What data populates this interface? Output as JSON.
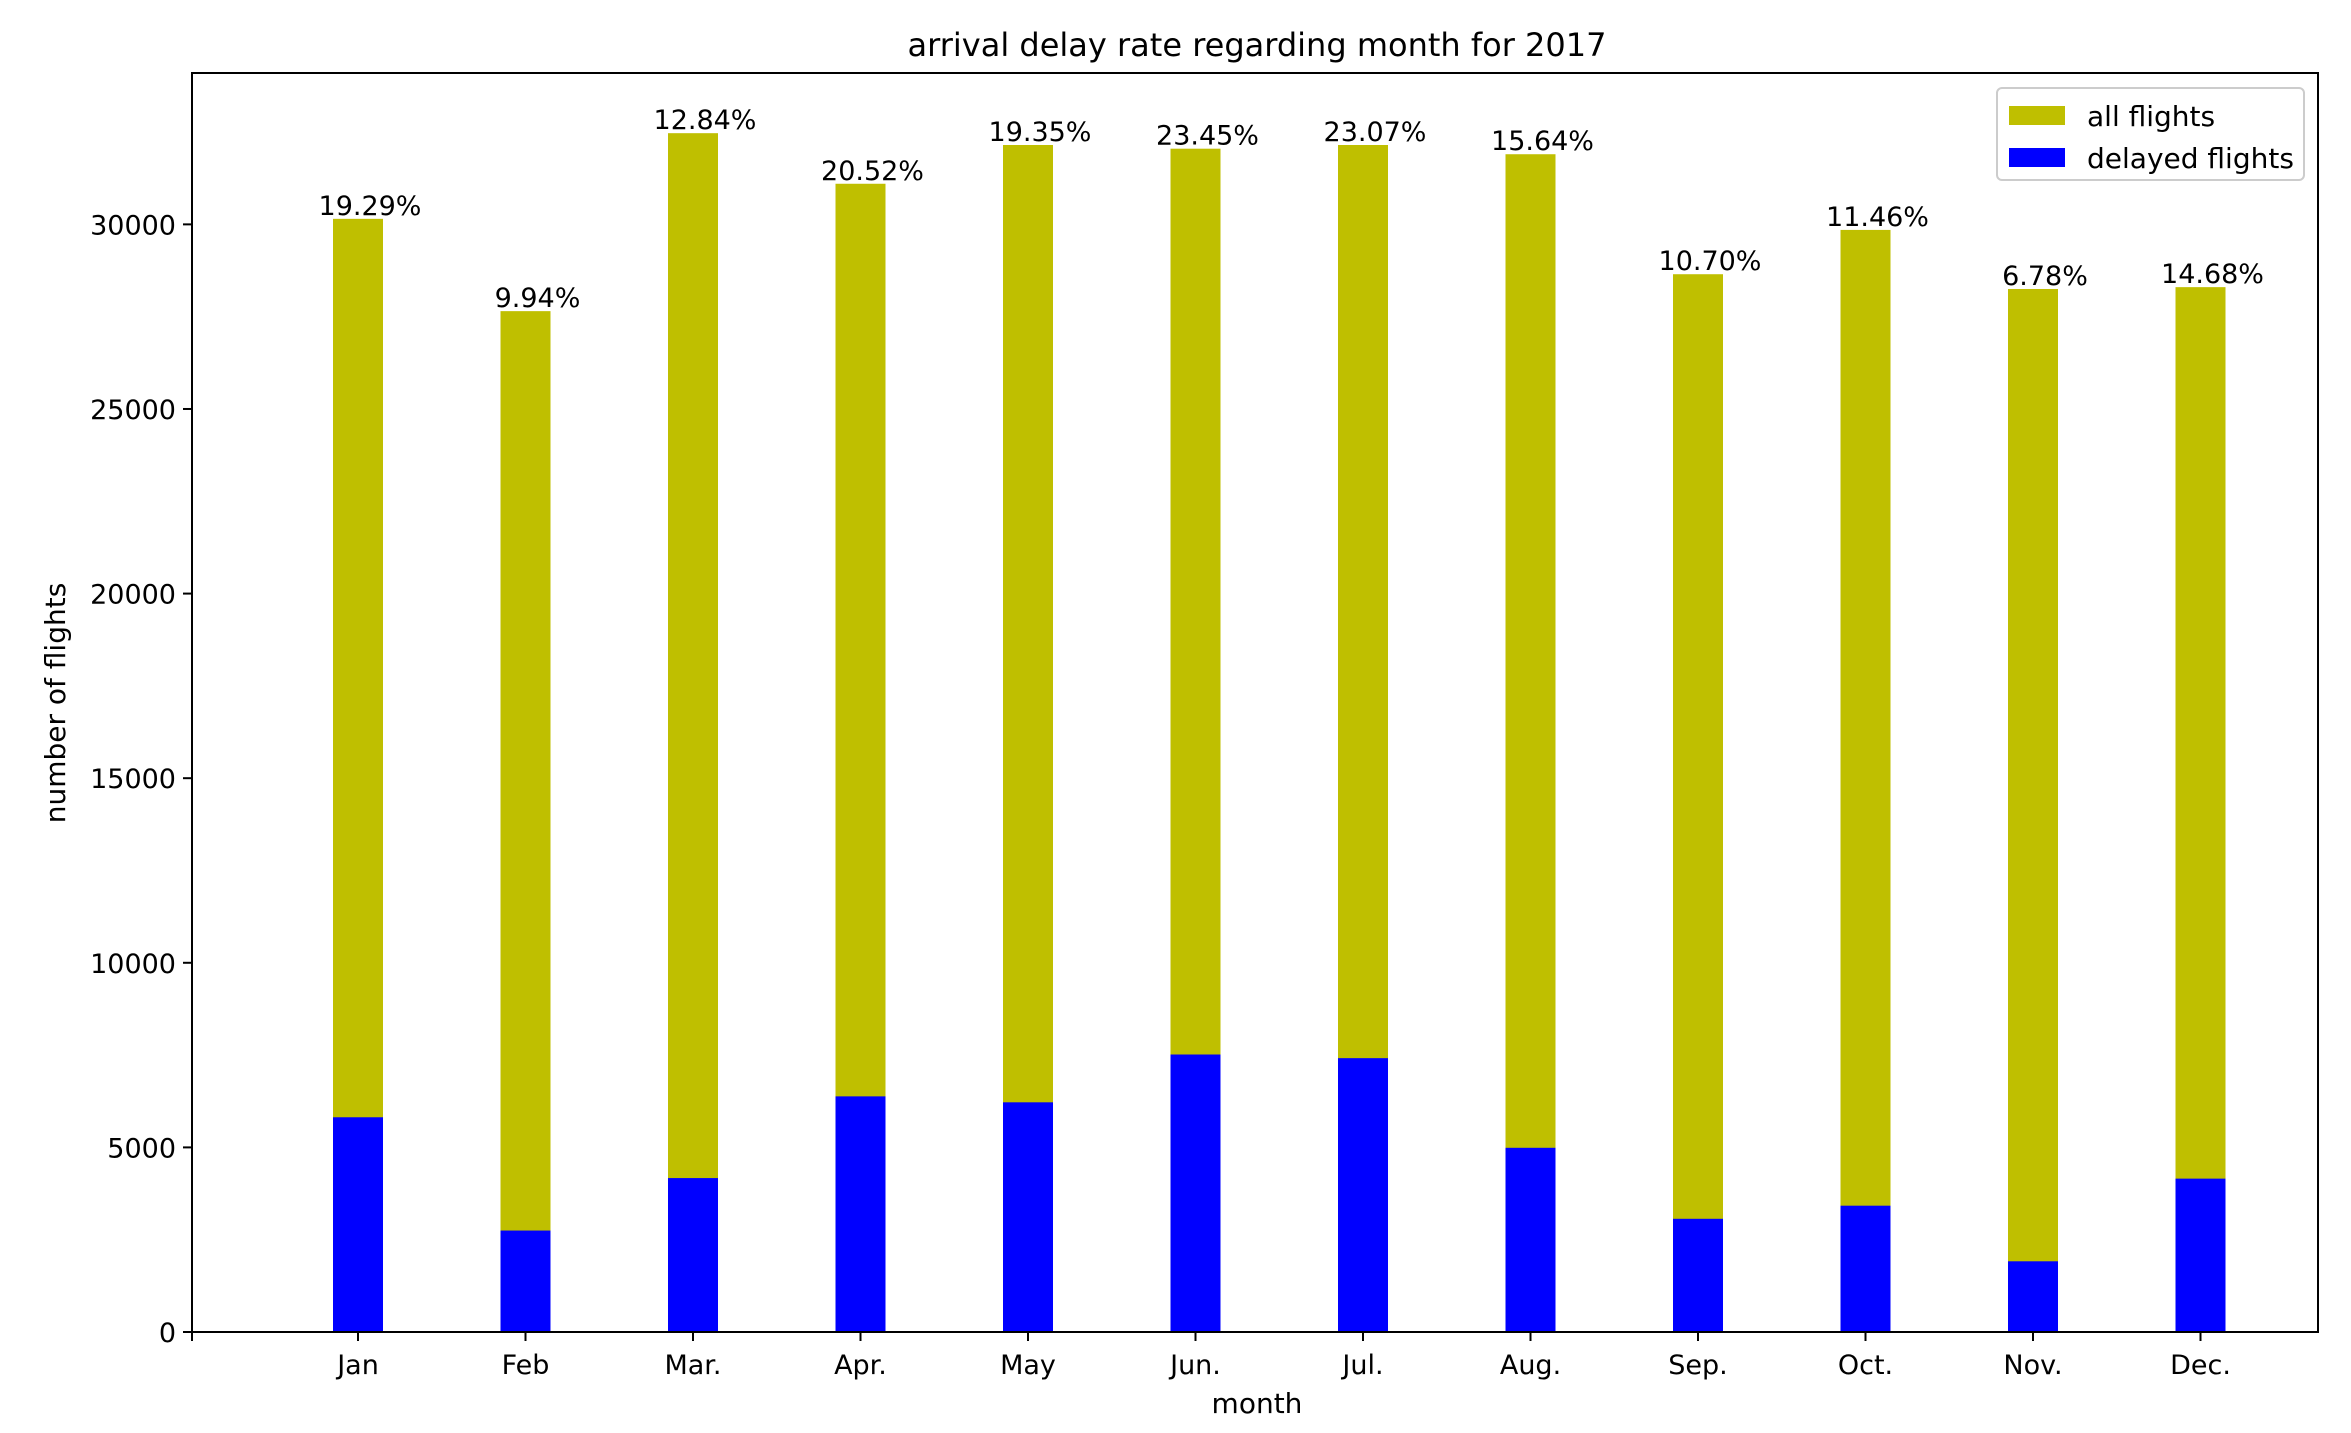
{
  "chart_data": {
    "type": "bar",
    "title": "arrival delay rate regarding month for 2017",
    "xlabel": "month",
    "ylabel": "number of flights",
    "categories": [
      "Jan",
      "Feb",
      "Mar.",
      "Apr.",
      "May",
      "Jun.",
      "Jul.",
      "Aug.",
      "Sep.",
      "Oct.",
      "Nov.",
      "Dec."
    ],
    "series": [
      {
        "name": "all flights",
        "color": "#bfbf00",
        "values": [
          30150,
          27650,
          32470,
          31100,
          32150,
          32050,
          32150,
          31900,
          28650,
          29850,
          28250,
          28300
        ]
      },
      {
        "name": "delayed flights",
        "color": "#0000ff",
        "values": [
          5816,
          2748,
          4169,
          6382,
          6221,
          7516,
          7417,
          4989,
          3066,
          3421,
          1915,
          4154
        ]
      }
    ],
    "data_labels": [
      "19.29%",
      "9.94%",
      "12.84%",
      "20.52%",
      "19.35%",
      "23.45%",
      "23.07%",
      "15.64%",
      "10.70%",
      "11.46%",
      "6.78%",
      "14.68%"
    ],
    "y_ticks": [
      "0",
      "5000",
      "10000",
      "15000",
      "20000",
      "25000",
      "30000"
    ],
    "ylim": [
      0,
      34100
    ],
    "grid": false,
    "legend_position": "upper right",
    "overlay": true
  }
}
